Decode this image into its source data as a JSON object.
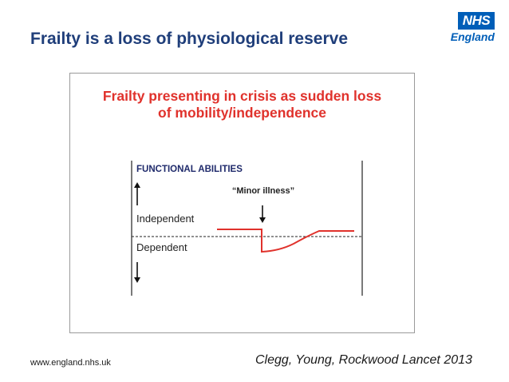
{
  "slide": {
    "title": "Frailty is a loss of physiological reserve",
    "footer_url": "www.england.nhs.uk",
    "citation": "Clegg, Young, Rockwood Lancet 2013"
  },
  "logo": {
    "mark": "NHS",
    "region": "England",
    "color": "#005eb8"
  },
  "figure": {
    "title_line1": "Frailty presenting in crisis as sudden loss",
    "title_line2": "of mobility/independence",
    "title_color": "#e0322c",
    "axis_heading": "FUNCTIONAL ABILITIES",
    "event_label": "“Minor illness”",
    "upper_region_label": "Independent",
    "lower_region_label": "Dependent",
    "line_color": "#e0322c"
  }
}
